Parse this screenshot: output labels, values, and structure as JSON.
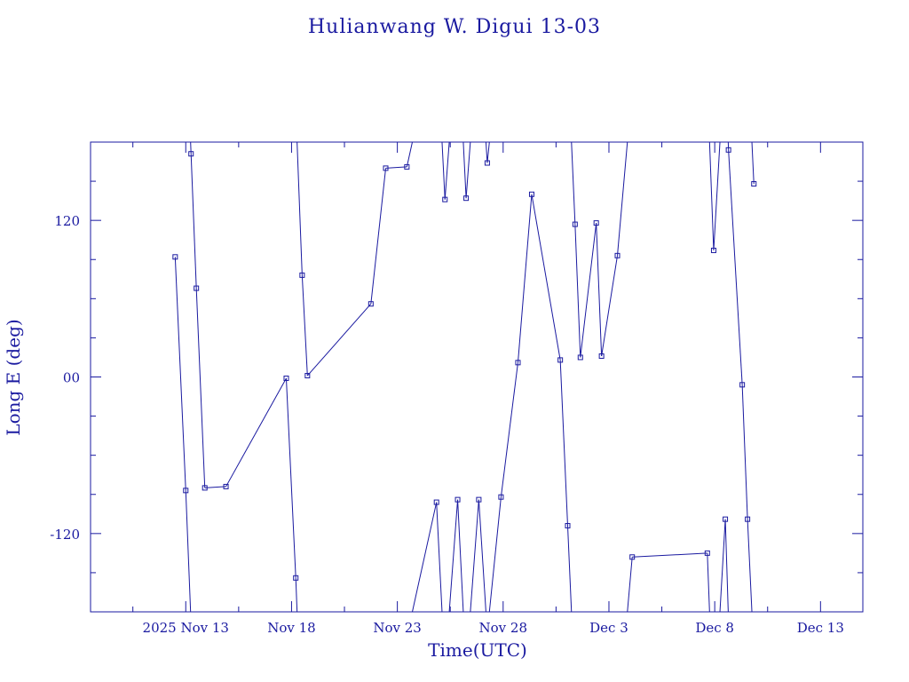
{
  "chart_data": {
    "type": "line",
    "title": "Hulianwang W. Digui 13-03",
    "xlabel": "Time(UTC)",
    "ylabel": "Long E (deg)",
    "xlim": [
      9.1,
      16.4
    ],
    "ylim": [
      -180,
      180
    ],
    "x_ticks": [
      {
        "label": "2025 Nov 13",
        "value": 10.0
      },
      {
        "label": "Nov 18",
        "value": 11.0
      },
      {
        "label": "Nov 23",
        "value": 12.0
      },
      {
        "label": "Nov 28",
        "value": 13.0
      },
      {
        "label": "Dec  3",
        "value": 14.0
      },
      {
        "label": "Dec  8",
        "value": 15.0
      },
      {
        "label": "Dec 13",
        "value": 16.0
      }
    ],
    "y_ticks": [
      {
        "label": "-120",
        "value": -120
      },
      {
        "label": "00",
        "value": 0
      },
      {
        "label": "120",
        "value": 120
      }
    ],
    "grid": false,
    "color": "#1a1aa0",
    "points": [
      {
        "x": 9.9,
        "y": 92
      },
      {
        "x": 10.0,
        "y": -87
      },
      {
        "x": 10.05,
        "y": 171
      },
      {
        "x": 10.1,
        "y": 68
      },
      {
        "x": 10.18,
        "y": -85
      },
      {
        "x": 10.38,
        "y": -84
      },
      {
        "x": 10.95,
        "y": -1
      },
      {
        "x": 11.04,
        "y": -154
      },
      {
        "x": 11.1,
        "y": 78
      },
      {
        "x": 11.15,
        "y": 1
      },
      {
        "x": 11.75,
        "y": 56
      },
      {
        "x": 11.89,
        "y": 160
      },
      {
        "x": 12.09,
        "y": 161
      },
      {
        "x": 12.37,
        "y": -96
      },
      {
        "x": 12.45,
        "y": 136
      },
      {
        "x": 12.57,
        "y": -94
      },
      {
        "x": 12.65,
        "y": 137
      },
      {
        "x": 12.77,
        "y": -94
      },
      {
        "x": 12.85,
        "y": 164
      },
      {
        "x": 12.98,
        "y": -92
      },
      {
        "x": 13.14,
        "y": 11
      },
      {
        "x": 13.27,
        "y": 140
      },
      {
        "x": 13.54,
        "y": 13
      },
      {
        "x": 13.61,
        "y": -114
      },
      {
        "x": 13.68,
        "y": 117
      },
      {
        "x": 13.73,
        "y": 15
      },
      {
        "x": 13.88,
        "y": 118
      },
      {
        "x": 13.93,
        "y": 16
      },
      {
        "x": 14.08,
        "y": 93
      },
      {
        "x": 14.22,
        "y": -138
      },
      {
        "x": 14.93,
        "y": -135
      },
      {
        "x": 14.99,
        "y": 97
      },
      {
        "x": 15.1,
        "y": -109
      },
      {
        "x": 15.13,
        "y": 174
      },
      {
        "x": 15.26,
        "y": -6
      },
      {
        "x": 15.31,
        "y": -109
      },
      {
        "x": 15.37,
        "y": 148
      }
    ]
  }
}
